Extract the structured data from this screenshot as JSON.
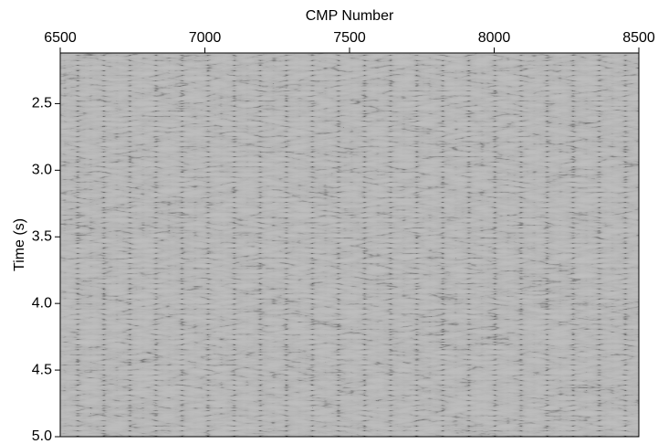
{
  "chart_data": {
    "type": "seismic",
    "x_label": "CMP Number",
    "y_label": "Time (s)",
    "xlim": [
      6500,
      8500
    ],
    "xticks": [
      6500,
      7000,
      7500,
      8000,
      8500
    ],
    "ylim": [
      2.12,
      5.0
    ],
    "yticks": [
      2.5,
      {
        "value": 3,
        "label": "3.0"
      },
      3.5,
      {
        "value": 4,
        "label": "4.0"
      },
      4.5,
      {
        "value": 5,
        "label": "5.0"
      }
    ]
  }
}
